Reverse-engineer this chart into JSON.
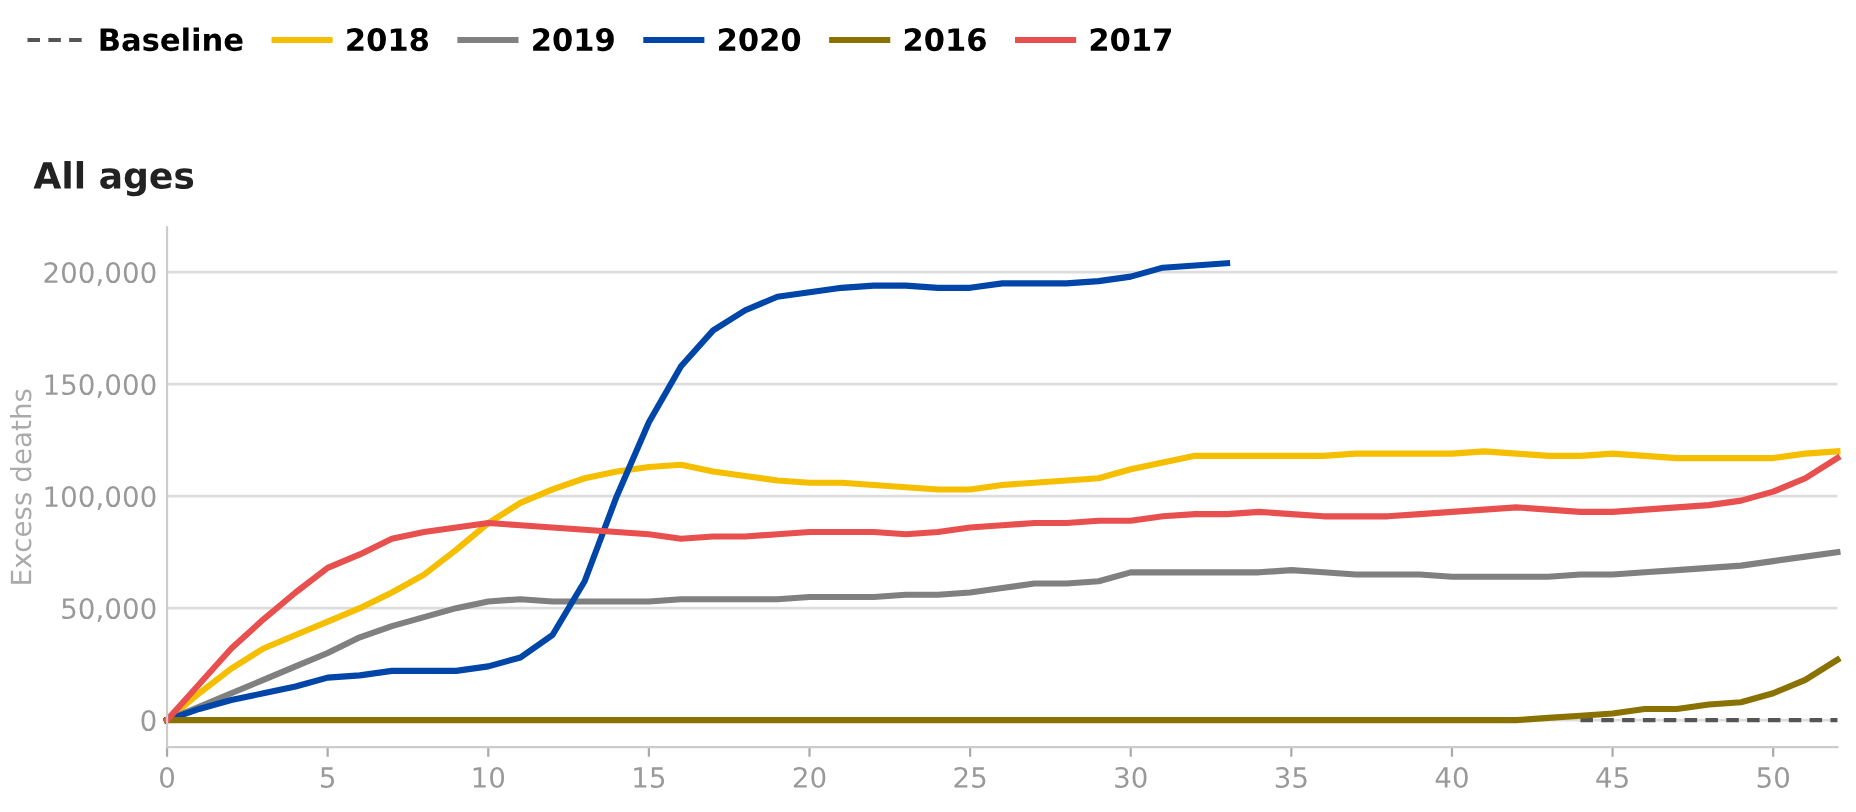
{
  "chart_data": {
    "type": "line",
    "title": "All ages",
    "ylabel": "Excess deaths",
    "x": [
      0,
      1,
      2,
      3,
      4,
      5,
      6,
      7,
      8,
      9,
      10,
      11,
      12,
      13,
      14,
      15,
      16,
      17,
      18,
      19,
      20,
      21,
      22,
      23,
      24,
      25,
      26,
      27,
      28,
      29,
      30,
      31,
      32,
      33,
      34,
      35,
      36,
      37,
      38,
      39,
      40,
      41,
      42,
      43,
      44,
      45,
      46,
      47,
      48,
      49,
      50,
      51,
      52
    ],
    "xlim": [
      0,
      52
    ],
    "xticks": [
      0,
      5,
      10,
      15,
      20,
      25,
      30,
      35,
      40,
      45,
      50
    ],
    "ylim": [
      -12000,
      220000
    ],
    "yticks": [
      {
        "value": 0,
        "label": "0"
      },
      {
        "value": 50000,
        "label": "50,000"
      },
      {
        "value": 100000,
        "label": "100,000"
      },
      {
        "value": 150000,
        "label": "150,000"
      },
      {
        "value": 200000,
        "label": "200,000"
      }
    ],
    "grid": "y",
    "legend": "top left",
    "marker": "none",
    "series": [
      {
        "name": "Baseline",
        "color": "#555555",
        "line_style": "dashed",
        "values": [
          null,
          null,
          null,
          null,
          null,
          null,
          null,
          null,
          null,
          null,
          null,
          null,
          null,
          null,
          null,
          null,
          null,
          null,
          null,
          null,
          null,
          null,
          null,
          null,
          null,
          null,
          null,
          null,
          null,
          null,
          null,
          null,
          null,
          null,
          null,
          null,
          null,
          null,
          null,
          null,
          null,
          null,
          null,
          null,
          0,
          0,
          0,
          0,
          0,
          0,
          0,
          0,
          0
        ]
      },
      {
        "name": "2018",
        "color": "#f5bf00",
        "values": [
          0,
          12000,
          23000,
          32000,
          38000,
          44000,
          50000,
          57000,
          65000,
          76000,
          88000,
          97000,
          103000,
          108000,
          111000,
          113000,
          114000,
          111000,
          109000,
          107000,
          106000,
          106000,
          105000,
          104000,
          103000,
          103000,
          105000,
          106000,
          107000,
          108000,
          112000,
          115000,
          118000,
          118000,
          118000,
          118000,
          118000,
          119000,
          119000,
          119000,
          119000,
          120000,
          119000,
          118000,
          118000,
          119000,
          118000,
          117000,
          117000,
          117000,
          117000,
          119000,
          120000
        ]
      },
      {
        "name": "2019",
        "color": "#808080",
        "values": [
          0,
          6000,
          12000,
          18000,
          24000,
          30000,
          37000,
          42000,
          46000,
          50000,
          53000,
          54000,
          53000,
          53000,
          53000,
          53000,
          54000,
          54000,
          54000,
          54000,
          55000,
          55000,
          55000,
          56000,
          56000,
          57000,
          59000,
          61000,
          61000,
          62000,
          66000,
          66000,
          66000,
          66000,
          66000,
          67000,
          66000,
          65000,
          65000,
          65000,
          64000,
          64000,
          64000,
          64000,
          65000,
          65000,
          66000,
          67000,
          68000,
          69000,
          71000,
          73000,
          75000
        ]
      },
      {
        "name": "2020",
        "color": "#0046a8",
        "x": [
          0,
          1,
          2,
          3,
          4,
          5,
          6,
          7,
          8,
          9,
          10,
          11,
          12,
          13,
          14,
          15,
          16,
          17,
          18,
          19,
          20,
          21,
          22,
          23,
          24,
          25,
          26,
          27,
          28,
          29,
          30,
          31,
          32,
          33
        ],
        "values": [
          0,
          5000,
          9000,
          12000,
          15000,
          19000,
          20000,
          22000,
          22000,
          22000,
          24000,
          28000,
          38000,
          62000,
          100000,
          133000,
          158000,
          174000,
          183000,
          189000,
          191000,
          193000,
          194000,
          194000,
          193000,
          193000,
          195000,
          195000,
          195000,
          196000,
          198000,
          202000,
          203000,
          204000
        ]
      },
      {
        "name": "2016",
        "color": "#8a7200",
        "values": [
          0,
          0,
          0,
          0,
          0,
          0,
          0,
          0,
          0,
          0,
          0,
          0,
          0,
          0,
          0,
          0,
          0,
          0,
          0,
          0,
          0,
          0,
          0,
          0,
          0,
          0,
          0,
          0,
          0,
          0,
          0,
          0,
          0,
          0,
          0,
          0,
          0,
          0,
          0,
          0,
          0,
          0,
          0,
          1000,
          2000,
          3000,
          5000,
          5000,
          7000,
          8000,
          12000,
          18000,
          27000
        ]
      },
      {
        "name": "2017",
        "color": "#e8504f",
        "values": [
          0,
          16000,
          32000,
          45000,
          57000,
          68000,
          74000,
          81000,
          84000,
          86000,
          88000,
          87000,
          86000,
          85000,
          84000,
          83000,
          81000,
          82000,
          82000,
          83000,
          84000,
          84000,
          84000,
          83000,
          84000,
          86000,
          87000,
          88000,
          88000,
          89000,
          89000,
          91000,
          92000,
          92000,
          93000,
          92000,
          91000,
          91000,
          91000,
          92000,
          93000,
          94000,
          95000,
          94000,
          93000,
          93000,
          94000,
          95000,
          96000,
          98000,
          102000,
          108000,
          117000
        ]
      }
    ]
  }
}
